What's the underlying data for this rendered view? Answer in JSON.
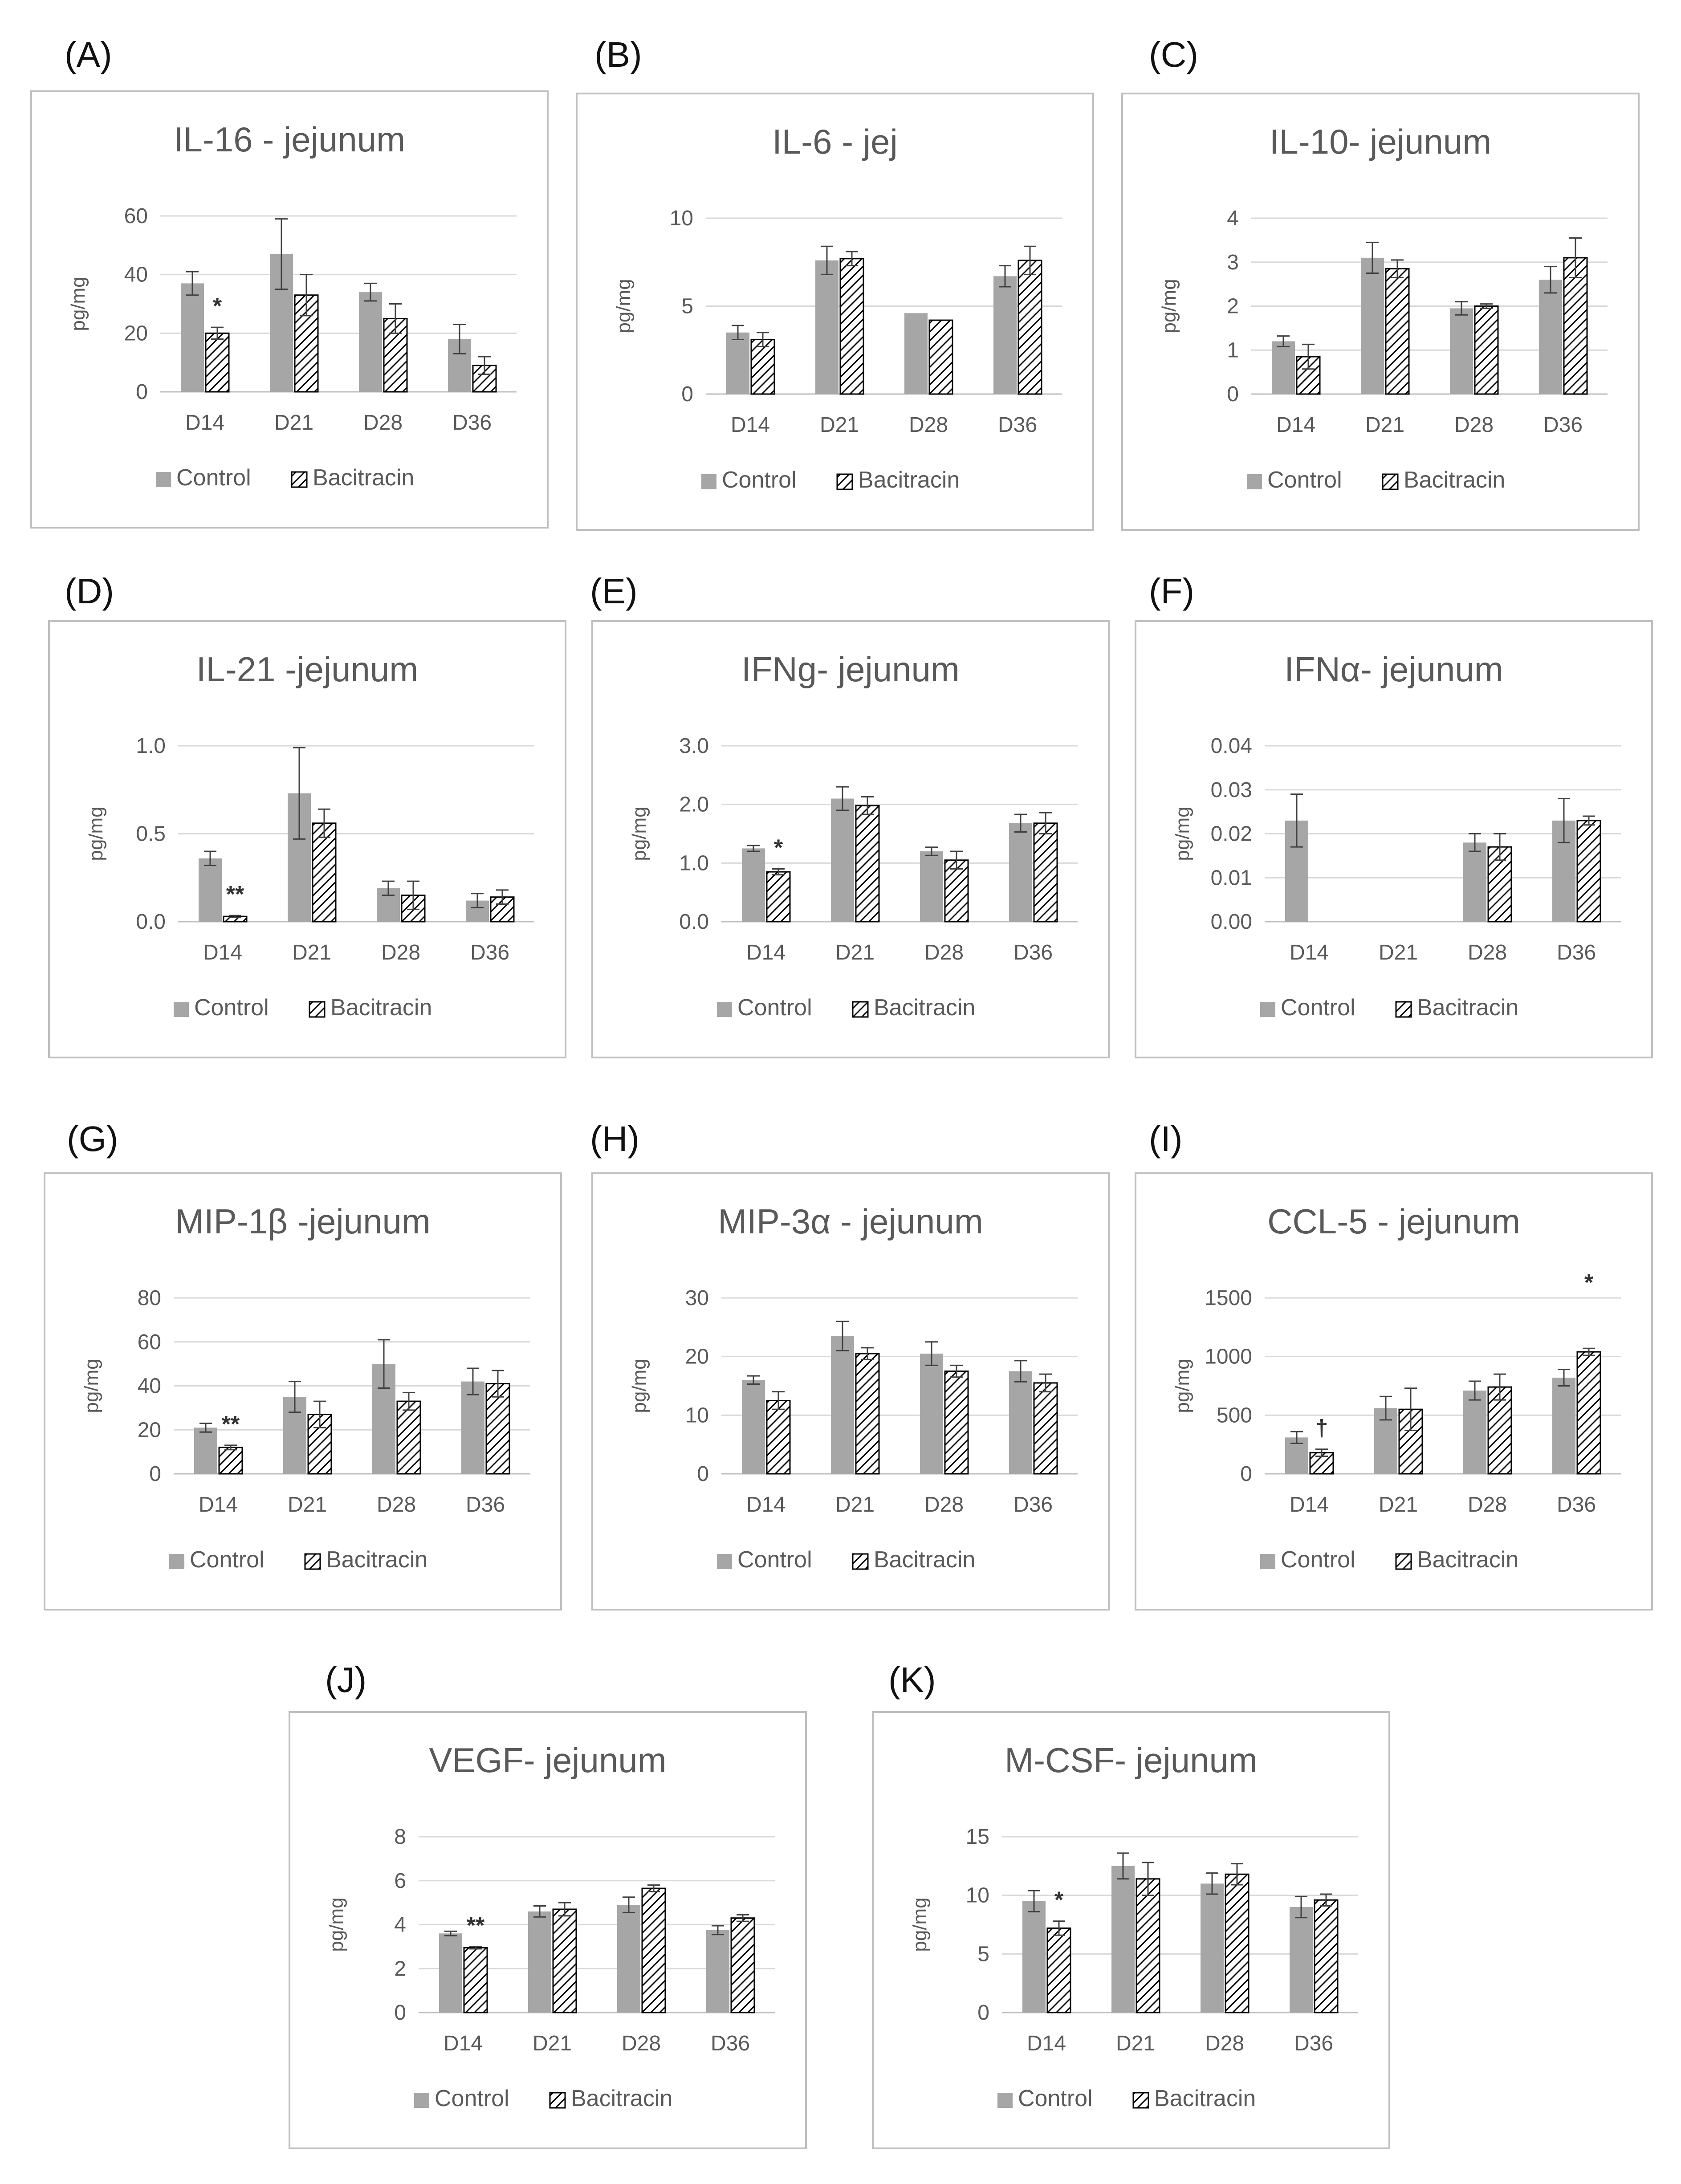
{
  "figure": {
    "series_names": [
      "Control",
      "Bacitracin"
    ],
    "colors": {
      "control": "#a6a6a6",
      "hatch": "#000000",
      "error": "#404040"
    }
  },
  "chart_data": [
    {
      "panel": "(A)",
      "type": "bar",
      "title": "IL-16 - jejunum",
      "ylabel": "pg/mg",
      "categories": [
        "D14",
        "D21",
        "D28",
        "D36"
      ],
      "ylim": [
        0,
        60
      ],
      "yticks": [
        0,
        20,
        40,
        60
      ],
      "tick_decimals": 0,
      "series": [
        {
          "name": "Control",
          "values": [
            37,
            47,
            34,
            18
          ],
          "errors": [
            4,
            12,
            3,
            5
          ]
        },
        {
          "name": "Bacitracin",
          "values": [
            20,
            33,
            25,
            9
          ],
          "errors": [
            2,
            7,
            5,
            3
          ]
        }
      ],
      "annotations": [
        {
          "category": "D14",
          "text": "*"
        }
      ]
    },
    {
      "panel": "(B)",
      "type": "bar",
      "title": "IL-6 - jej",
      "ylabel": "pg/mg",
      "categories": [
        "D14",
        "D21",
        "D28",
        "D36"
      ],
      "ylim": [
        0,
        10
      ],
      "yticks": [
        0,
        5,
        10
      ],
      "tick_decimals": 0,
      "series": [
        {
          "name": "Control",
          "values": [
            3.5,
            7.6,
            4.6,
            6.7
          ],
          "errors": [
            0.4,
            0.8,
            0,
            0.6
          ]
        },
        {
          "name": "Bacitracin",
          "values": [
            3.1,
            7.7,
            4.2,
            7.6
          ],
          "errors": [
            0.4,
            0.4,
            0,
            0.8
          ]
        }
      ],
      "annotations": []
    },
    {
      "panel": "(C)",
      "type": "bar",
      "title": "IL-10- jejunum",
      "ylabel": "pg/mg",
      "categories": [
        "D14",
        "D21",
        "D28",
        "D36"
      ],
      "ylim": [
        0,
        4
      ],
      "yticks": [
        0,
        1,
        2,
        3,
        4
      ],
      "tick_decimals": 0,
      "series": [
        {
          "name": "Control",
          "values": [
            1.2,
            3.1,
            1.95,
            2.6
          ],
          "errors": [
            0.12,
            0.35,
            0.15,
            0.3
          ]
        },
        {
          "name": "Bacitracin",
          "values": [
            0.85,
            2.85,
            2.0,
            3.1
          ],
          "errors": [
            0.28,
            0.2,
            0.05,
            0.45
          ]
        }
      ],
      "annotations": []
    },
    {
      "panel": "(D)",
      "type": "bar",
      "title": "IL-21 -jejunum",
      "ylabel": "pg/mg",
      "categories": [
        "D14",
        "D21",
        "D28",
        "D36"
      ],
      "ylim": [
        0,
        1.0
      ],
      "yticks": [
        0,
        0.5,
        1.0
      ],
      "tick_decimals": 1,
      "series": [
        {
          "name": "Control",
          "values": [
            0.36,
            0.73,
            0.19,
            0.12
          ],
          "errors": [
            0.04,
            0.26,
            0.04,
            0.04
          ]
        },
        {
          "name": "Bacitracin",
          "values": [
            0.03,
            0.56,
            0.15,
            0.14
          ],
          "errors": [
            0.005,
            0.08,
            0.08,
            0.04
          ]
        }
      ],
      "annotations": [
        {
          "category": "D14",
          "text": "**"
        }
      ]
    },
    {
      "panel": "(E)",
      "type": "bar",
      "title": "IFNg- jejunum",
      "ylabel": "pg/mg",
      "categories": [
        "D14",
        "D21",
        "D28",
        "D36"
      ],
      "ylim": [
        0,
        3.0
      ],
      "yticks": [
        0,
        1.0,
        2.0,
        3.0
      ],
      "tick_decimals": 1,
      "series": [
        {
          "name": "Control",
          "values": [
            1.25,
            2.1,
            1.2,
            1.68
          ],
          "errors": [
            0.05,
            0.2,
            0.07,
            0.15
          ]
        },
        {
          "name": "Bacitracin",
          "values": [
            0.85,
            1.98,
            1.05,
            1.68
          ],
          "errors": [
            0.05,
            0.15,
            0.15,
            0.18
          ]
        }
      ],
      "annotations": [
        {
          "category": "D14",
          "text": "*"
        }
      ]
    },
    {
      "panel": "(F)",
      "type": "bar",
      "title": "IFNα- jejunum",
      "ylabel": "pg/mg",
      "categories": [
        "D14",
        "D21",
        "D28",
        "D36"
      ],
      "ylim": [
        0,
        0.04
      ],
      "yticks": [
        0,
        0.01,
        0.02,
        0.03,
        0.04
      ],
      "tick_decimals": 2,
      "series": [
        {
          "name": "Control",
          "values": [
            0.023,
            0,
            0.018,
            0.023
          ],
          "errors": [
            0.006,
            0,
            0.002,
            0.005
          ]
        },
        {
          "name": "Bacitracin",
          "values": [
            0,
            0,
            0.017,
            0.023
          ],
          "errors": [
            0,
            0,
            0.003,
            0.001
          ]
        }
      ],
      "annotations": []
    },
    {
      "panel": "(G)",
      "type": "bar",
      "title": "MIP-1β -jejunum",
      "ylabel": "pg/mg",
      "categories": [
        "D14",
        "D21",
        "D28",
        "D36"
      ],
      "ylim": [
        0,
        80
      ],
      "yticks": [
        0,
        20,
        40,
        60,
        80
      ],
      "tick_decimals": 0,
      "series": [
        {
          "name": "Control",
          "values": [
            21,
            35,
            50,
            42
          ],
          "errors": [
            2,
            7,
            11,
            6
          ]
        },
        {
          "name": "Bacitracin",
          "values": [
            12,
            27,
            33,
            41
          ],
          "errors": [
            1,
            6,
            4,
            6
          ]
        }
      ],
      "annotations": [
        {
          "category": "D14",
          "text": "**"
        }
      ]
    },
    {
      "panel": "(H)",
      "type": "bar",
      "title": "MIP-3α - jejunum",
      "ylabel": "pg/mg",
      "categories": [
        "D14",
        "D21",
        "D28",
        "D36"
      ],
      "ylim": [
        0,
        30
      ],
      "yticks": [
        0,
        10,
        20,
        30
      ],
      "tick_decimals": 0,
      "series": [
        {
          "name": "Control",
          "values": [
            16,
            23.5,
            20.5,
            17.5
          ],
          "errors": [
            0.7,
            2.5,
            2,
            1.8
          ]
        },
        {
          "name": "Bacitracin",
          "values": [
            12.5,
            20.5,
            17.5,
            15.5
          ],
          "errors": [
            1.5,
            1,
            1,
            1.5
          ]
        }
      ],
      "annotations": []
    },
    {
      "panel": "(I)",
      "type": "bar",
      "title": "CCL-5 - jejunum",
      "ylabel": "pg/mg",
      "categories": [
        "D14",
        "D21",
        "D28",
        "D36"
      ],
      "ylim": [
        0,
        1500
      ],
      "yticks": [
        0,
        500,
        1000,
        1500
      ],
      "tick_decimals": 0,
      "series": [
        {
          "name": "Control",
          "values": [
            310,
            560,
            710,
            820
          ],
          "errors": [
            50,
            100,
            80,
            70
          ]
        },
        {
          "name": "Bacitracin",
          "values": [
            180,
            550,
            740,
            1040
          ],
          "errors": [
            30,
            180,
            110,
            30
          ]
        }
      ],
      "annotations": [
        {
          "category": "D14",
          "text": "†"
        },
        {
          "category": "D36",
          "text": "*"
        }
      ]
    },
    {
      "panel": "(J)",
      "type": "bar",
      "title": "VEGF- jejunum",
      "ylabel": "pg/mg",
      "categories": [
        "D14",
        "D21",
        "D28",
        "D36"
      ],
      "ylim": [
        0,
        8
      ],
      "yticks": [
        0,
        2,
        4,
        6,
        8
      ],
      "tick_decimals": 0,
      "series": [
        {
          "name": "Control",
          "values": [
            3.6,
            4.6,
            4.9,
            3.75
          ],
          "errors": [
            0.1,
            0.25,
            0.35,
            0.2
          ]
        },
        {
          "name": "Bacitracin",
          "values": [
            2.95,
            4.7,
            5.65,
            4.3
          ],
          "errors": [
            0.05,
            0.3,
            0.15,
            0.15
          ]
        }
      ],
      "annotations": [
        {
          "category": "D14",
          "text": "**"
        }
      ]
    },
    {
      "panel": "(K)",
      "type": "bar",
      "title": "M-CSF- jejunum",
      "ylabel": "pg/mg",
      "categories": [
        "D14",
        "D21",
        "D28",
        "D36"
      ],
      "ylim": [
        0,
        15
      ],
      "yticks": [
        0,
        5,
        10,
        15
      ],
      "tick_decimals": 0,
      "series": [
        {
          "name": "Control",
          "values": [
            9.5,
            12.5,
            11,
            9
          ],
          "errors": [
            0.9,
            1.1,
            0.9,
            0.9
          ]
        },
        {
          "name": "Bacitracin",
          "values": [
            7.2,
            11.4,
            11.8,
            9.6
          ],
          "errors": [
            0.6,
            1.4,
            0.9,
            0.5
          ]
        }
      ],
      "annotations": [
        {
          "category": "D14",
          "text": "*"
        }
      ]
    }
  ]
}
